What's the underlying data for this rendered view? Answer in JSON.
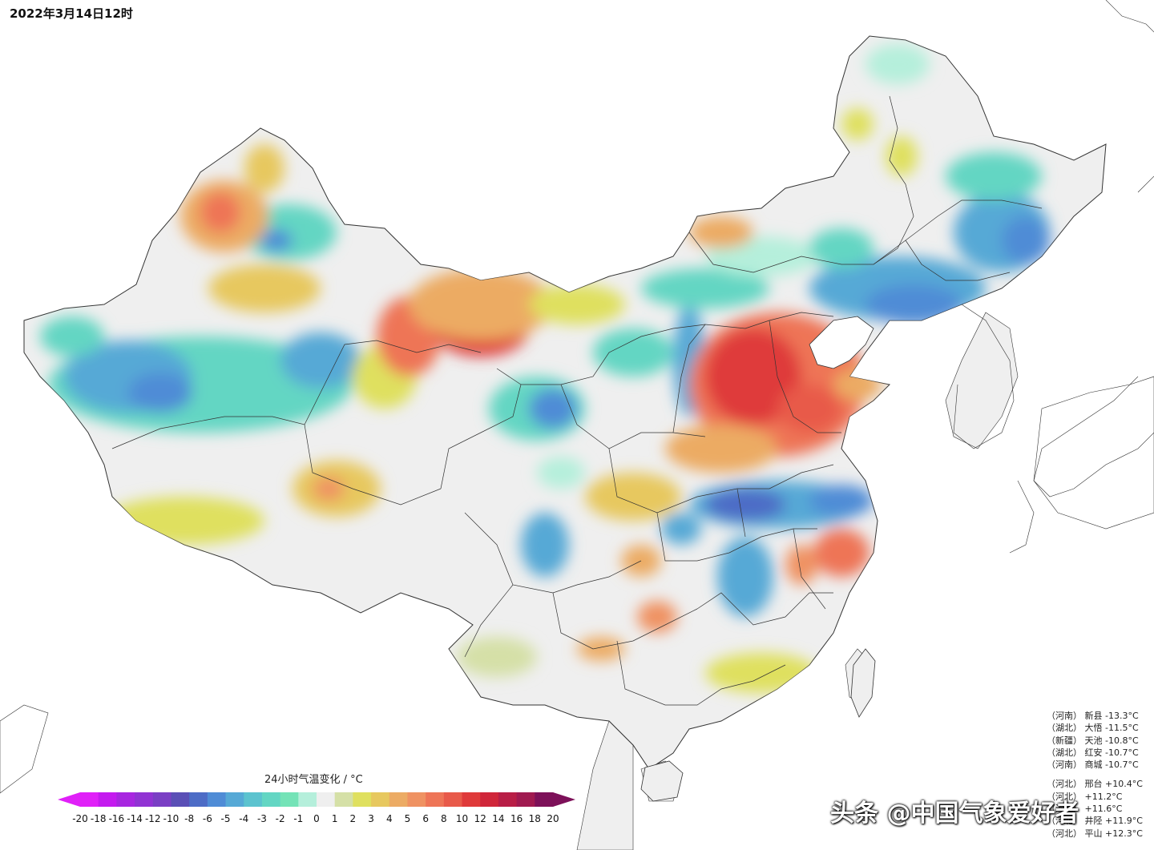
{
  "timestamp": "2022年3月14日12时",
  "legend": {
    "title": "24小时气温变化 / °C",
    "ticks": [
      "-20",
      "-18",
      "-16",
      "-14",
      "-12",
      "-10",
      "-8",
      "-6",
      "-5",
      "-4",
      "-3",
      "-2",
      "-1",
      "0",
      "1",
      "2",
      "3",
      "4",
      "5",
      "6",
      "8",
      "10",
      "12",
      "14",
      "16",
      "18",
      "20"
    ],
    "colors": [
      "#e020f8",
      "#c41aef",
      "#a826e0",
      "#9133d3",
      "#7a3fc4",
      "#5a4fb6",
      "#4d6cc6",
      "#4f8cd6",
      "#56a9d6",
      "#5cc3cf",
      "#63d6c3",
      "#74e3b7",
      "#b5efdb",
      "#efefef",
      "#d5e0a7",
      "#dfe05f",
      "#e7c85f",
      "#ecab64",
      "#ef9262",
      "#ee7557",
      "#e85a4a",
      "#df3a3a",
      "#d0263a",
      "#b81e46",
      "#a01a50",
      "#7d1159"
    ]
  },
  "stations_cold": [
    {
      "province": "（河南）",
      "name": "新县",
      "value": "-13.3°C"
    },
    {
      "province": "（湖北）",
      "name": "大悟",
      "value": "-11.5°C"
    },
    {
      "province": "（新疆）",
      "name": "天池",
      "value": "-10.8°C"
    },
    {
      "province": "（湖北）",
      "name": "红安",
      "value": "-10.7°C"
    },
    {
      "province": "（河南）",
      "name": "商城",
      "value": "-10.7°C"
    }
  ],
  "stations_warm": [
    {
      "province": "（河北）",
      "name": "邢台",
      "value": "+10.4°C"
    },
    {
      "province": "（河北）",
      "name": "",
      "value": "+11.2°C"
    },
    {
      "province": "（河北）",
      "name": "",
      "value": "+11.6°C"
    },
    {
      "province": "（河北）",
      "name": "井陉",
      "value": "+11.9°C"
    },
    {
      "province": "（河北）",
      "name": "平山",
      "value": "+12.3°C"
    }
  ],
  "watermark": "头条 @中国气象爱好者",
  "colors": {
    "land": "#efefef",
    "ocean": "#ffffff",
    "border": "#333333"
  }
}
